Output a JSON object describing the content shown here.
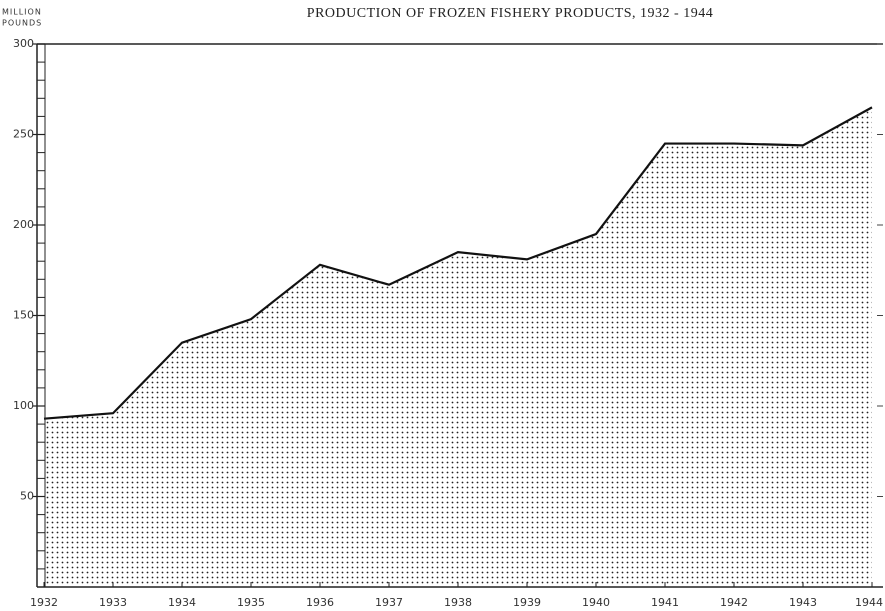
{
  "chart_data": {
    "type": "area",
    "title": "PRODUCTION OF FROZEN FISHERY PRODUCTS, 1932 - 1944",
    "y_label": [
      "MILLION",
      "POUNDS"
    ],
    "x": [
      1932,
      1933,
      1934,
      1935,
      1936,
      1937,
      1938,
      1939,
      1940,
      1941,
      1942,
      1943,
      1944
    ],
    "values": [
      93,
      96,
      135,
      148,
      178,
      167,
      185,
      181,
      195,
      245,
      245,
      244,
      265
    ],
    "color": "#111111",
    "xlim": [
      1932,
      1944
    ],
    "xticks": [
      1932,
      1933,
      1934,
      1935,
      1936,
      1937,
      1938,
      1939,
      1940,
      1941,
      1942,
      1943,
      1944
    ],
    "ylim": [
      0,
      300
    ],
    "yticks": [
      50,
      100,
      150,
      200,
      250,
      300
    ],
    "grid": false
  }
}
